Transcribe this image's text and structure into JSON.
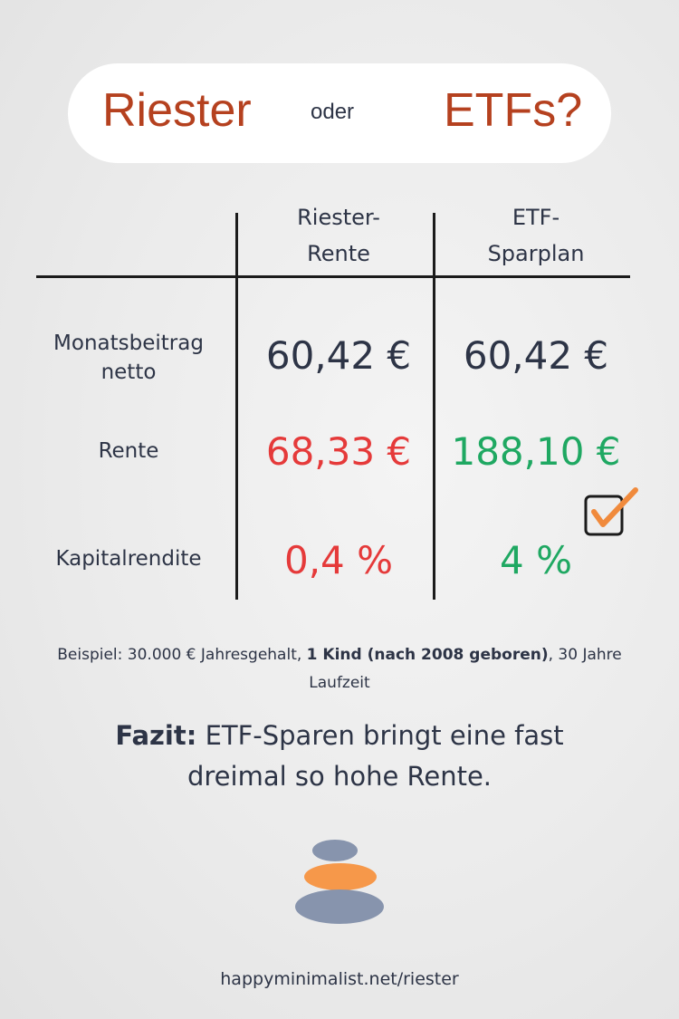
{
  "header": {
    "left": "Riester",
    "middle": "oder",
    "right": "ETFs?"
  },
  "table": {
    "columns": [
      [
        "Riester-",
        "Rente"
      ],
      [
        "ETF-",
        "Sparplan"
      ]
    ],
    "rows": [
      {
        "label": [
          "Monatsbeitrag",
          "netto"
        ],
        "values": [
          "60,42 €",
          "60,42 €"
        ]
      },
      {
        "label": [
          "Rente"
        ],
        "values": [
          "68,33 €",
          "188,10 €"
        ]
      },
      {
        "label": [
          "Kapitalrendite"
        ],
        "values": [
          "0,4 %",
          "4 %"
        ]
      }
    ]
  },
  "note": {
    "before": "Beispiel: 30.000 € Jahresgehalt,",
    "bold": "1 Kind (nach 2008 geboren)",
    "after": ", 30 Jahre Laufzeit"
  },
  "conclusion": {
    "label": "Fazit:",
    "text": "ETF-Sparen bringt eine fast dreimal so hohe Rente."
  },
  "footer": {
    "url": "happyminimalist.net/riester"
  }
}
